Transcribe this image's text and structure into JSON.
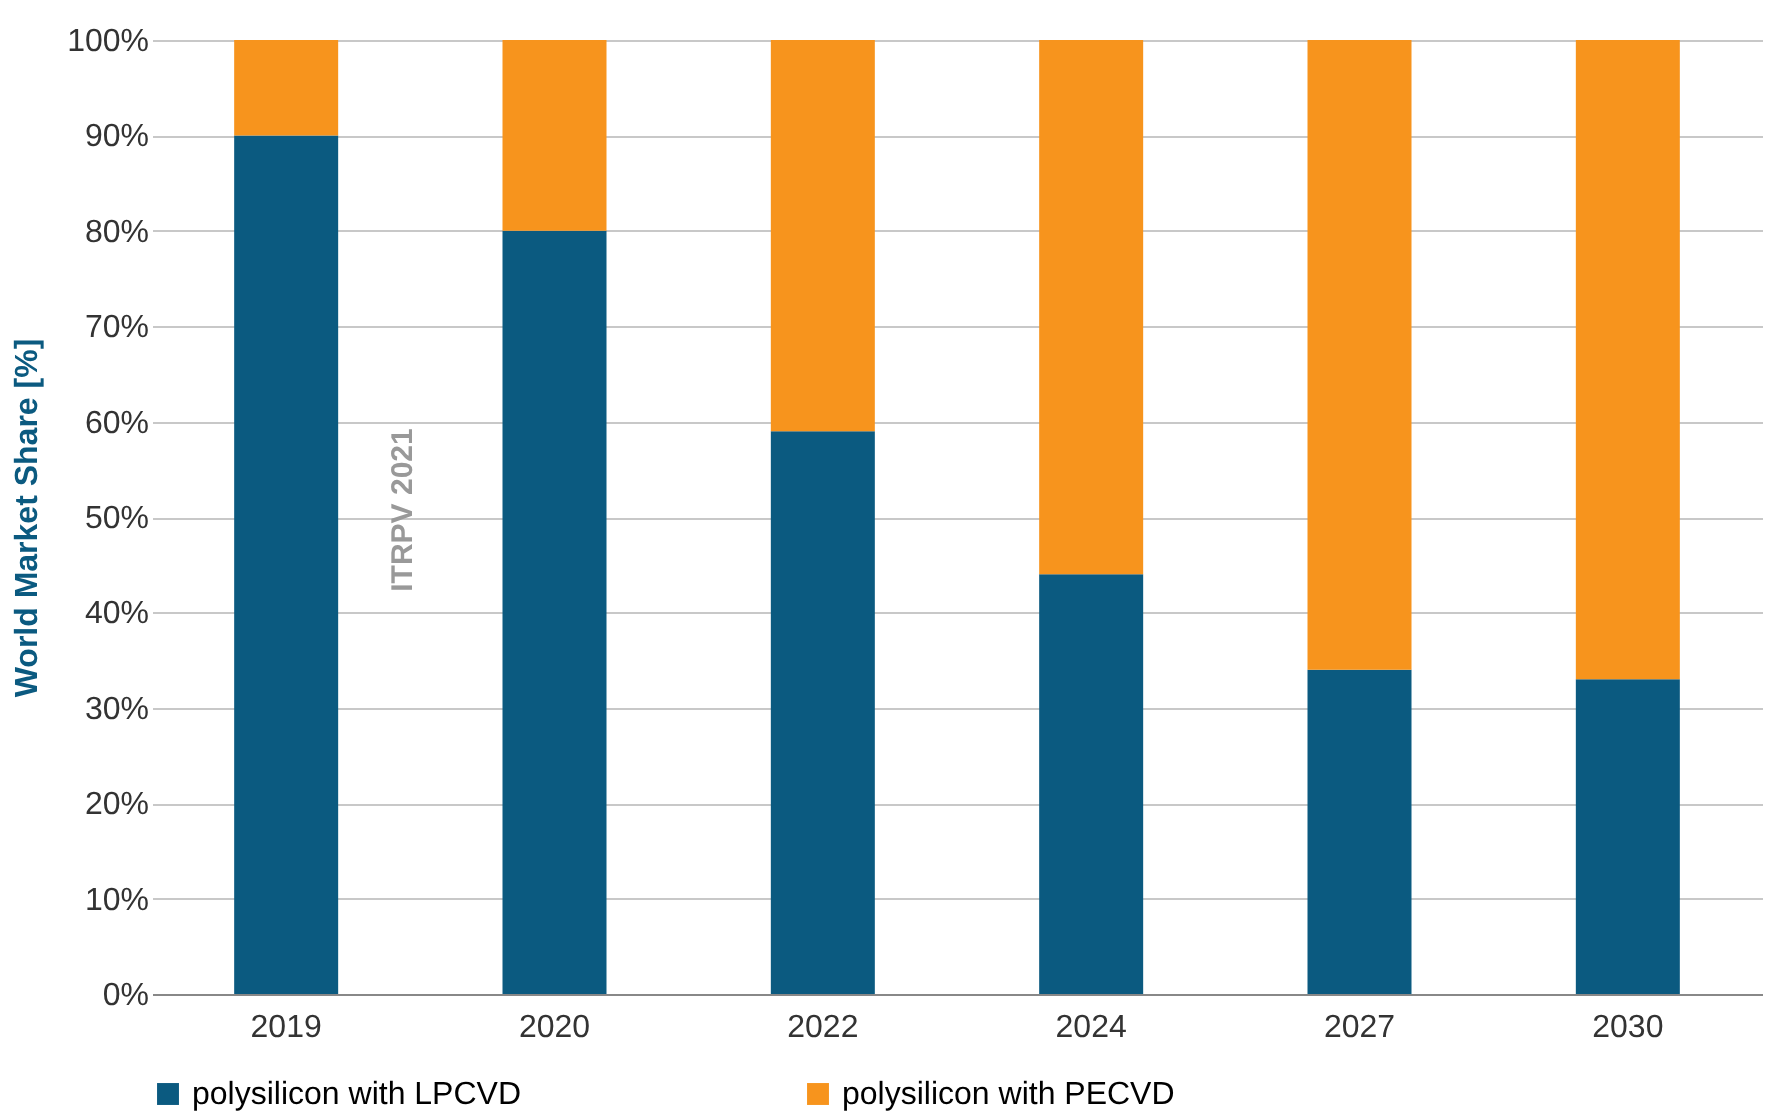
{
  "chart_data": {
    "type": "bar",
    "stacked": true,
    "ylabel": "World Market Share [%]",
    "categories": [
      "2019",
      "2020",
      "2022",
      "2024",
      "2027",
      "2030"
    ],
    "series": [
      {
        "name": "polysilicon with LPCVD",
        "color": "#0b5a80",
        "values": [
          90,
          80,
          59,
          44,
          34,
          33
        ]
      },
      {
        "name": "polysilicon with PECVD",
        "color": "#f7941d",
        "values": [
          10,
          20,
          41,
          56,
          66,
          67
        ]
      }
    ],
    "ylim": [
      0,
      100
    ],
    "yticks": [
      {
        "value": 0,
        "label": "0%"
      },
      {
        "value": 10,
        "label": "10%"
      },
      {
        "value": 20,
        "label": "20%"
      },
      {
        "value": 30,
        "label": "30%"
      },
      {
        "value": 40,
        "label": "40%"
      },
      {
        "value": 50,
        "label": "50%"
      },
      {
        "value": 60,
        "label": "60%"
      },
      {
        "value": 70,
        "label": "70%"
      },
      {
        "value": 80,
        "label": "80%"
      },
      {
        "value": 90,
        "label": "90%"
      },
      {
        "value": 100,
        "label": "100%"
      }
    ],
    "grid": "y",
    "legend": "bottom",
    "annotations": [
      "ITRPV 2021"
    ]
  }
}
